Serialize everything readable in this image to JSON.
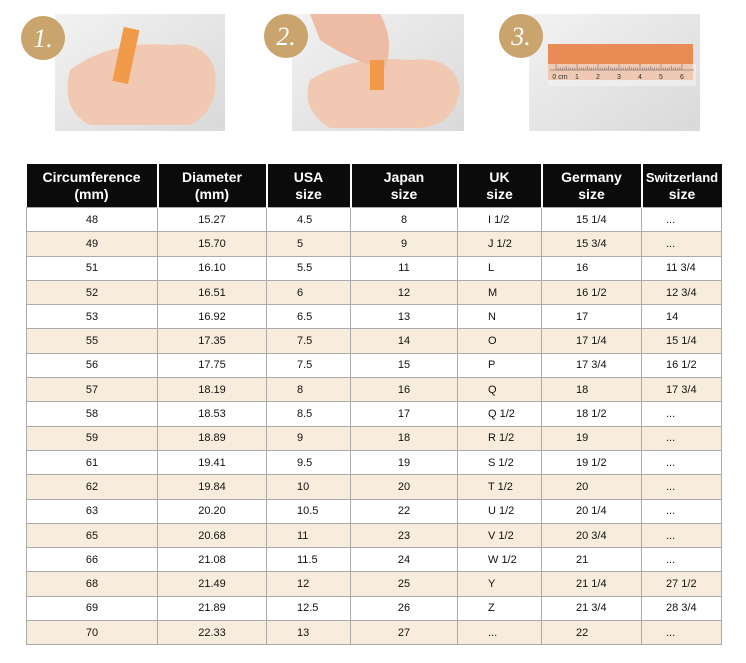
{
  "steps": [
    {
      "label": "1."
    },
    {
      "label": "2."
    },
    {
      "label": "3.",
      "ruler_labels": [
        "0 cm",
        "1",
        "2",
        "3",
        "4",
        "5",
        "6"
      ]
    }
  ],
  "table": {
    "header": [
      [
        "Circumference",
        "(mm)"
      ],
      [
        "Diameter",
        "(mm)"
      ],
      [
        "USA",
        "size"
      ],
      [
        "Japan",
        "size"
      ],
      [
        "UK",
        "size"
      ],
      [
        "Germany",
        "size"
      ],
      [
        "Switzerland",
        "size"
      ]
    ],
    "rows": [
      [
        "48",
        "15.27",
        "4.5",
        "8",
        "I 1/2",
        "15 1/4",
        "..."
      ],
      [
        "49",
        "15.70",
        "5",
        "9",
        "J 1/2",
        "15 3/4",
        "..."
      ],
      [
        "51",
        "16.10",
        "5.5",
        "11",
        "L",
        "16",
        "11 3/4"
      ],
      [
        "52",
        "16.51",
        "6",
        "12",
        "M",
        "16 1/2",
        "12 3/4"
      ],
      [
        "53",
        "16.92",
        "6.5",
        "13",
        "N",
        "17",
        "14"
      ],
      [
        "55",
        "17.35",
        "7.5",
        "14",
        "O",
        "17 1/4",
        "15 1/4"
      ],
      [
        "56",
        "17.75",
        "7.5",
        "15",
        "P",
        "17 3/4",
        "16 1/2"
      ],
      [
        "57",
        "18.19",
        "8",
        "16",
        "Q",
        "18",
        "17 3/4"
      ],
      [
        "58",
        "18.53",
        "8.5",
        "17",
        "Q 1/2",
        "18 1/2",
        "..."
      ],
      [
        "59",
        "18.89",
        "9",
        "18",
        "R 1/2",
        "19",
        "..."
      ],
      [
        "61",
        "19.41",
        "9.5",
        "19",
        "S 1/2",
        "19 1/2",
        "..."
      ],
      [
        "62",
        "19.84",
        "10",
        "20",
        "T 1/2",
        "20",
        "..."
      ],
      [
        "63",
        "20.20",
        "10.5",
        "22",
        "U 1/2",
        "20 1/4",
        "..."
      ],
      [
        "65",
        "20.68",
        "11",
        "23",
        "V 1/2",
        "20 3/4",
        "..."
      ],
      [
        "66",
        "21.08",
        "11.5",
        "24",
        "W 1/2",
        "21",
        "..."
      ],
      [
        "68",
        "21.49",
        "12",
        "25",
        "Y",
        "21 1/4",
        "27 1/2"
      ],
      [
        "69",
        "21.89",
        "12.5",
        "26",
        "Z",
        "21 3/4",
        "28 3/4"
      ],
      [
        "70",
        "22.33",
        "13",
        "27",
        "...",
        "22",
        "..."
      ]
    ]
  }
}
